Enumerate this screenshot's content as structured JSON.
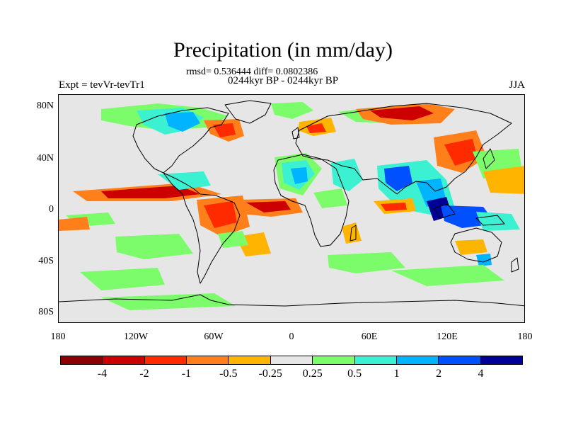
{
  "title": "Precipitation (in mm/day)",
  "stats": "rmsd= 0.536444 diff= 0.0802386",
  "period": "0244kyr BP - 0244kyr BP",
  "expt": "Expt = tevVr-tevTr1",
  "season": "JJA",
  "lat_labels": [
    "80N",
    "40N",
    "0",
    "40S",
    "80S"
  ],
  "lon_labels": [
    "180",
    "120W",
    "60W",
    "0",
    "60E",
    "120E",
    "180"
  ],
  "colorbar": {
    "labels": [
      "-4",
      "-2",
      "-1",
      "-0.5",
      "-0.25",
      "0.25",
      "0.5",
      "1",
      "2",
      "4"
    ],
    "colors": [
      "#8b0000",
      "#cd0000",
      "#ff2a00",
      "#ff7f1a",
      "#ffb400",
      "#e6e6e6",
      "#7cfc6a",
      "#3cf0d2",
      "#00b4ff",
      "#0050ff",
      "#000096"
    ]
  },
  "colors": {
    "background": "#e6e6e6",
    "coast": "#000000"
  }
}
